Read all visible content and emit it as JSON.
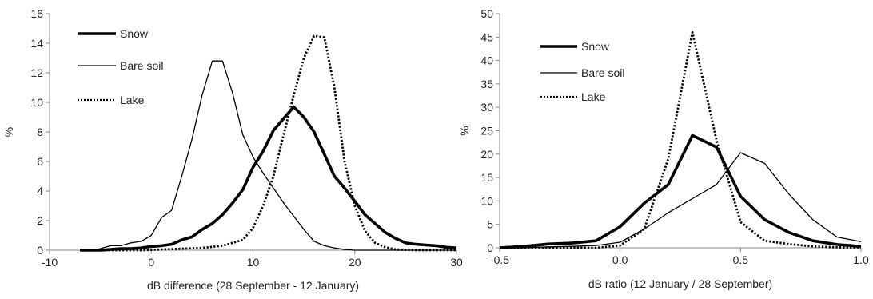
{
  "chart_data": [
    {
      "type": "line",
      "title": "",
      "xlabel": "dB difference (28 September - 12 January)",
      "ylabel": "%",
      "xlim": [
        -10,
        30
      ],
      "ylim": [
        0,
        16
      ],
      "xticks": [
        -10,
        0,
        10,
        20,
        30
      ],
      "yticks": [
        0,
        2,
        4,
        6,
        8,
        10,
        12,
        14,
        16
      ],
      "xtick_labels": [
        "-10",
        "0",
        "10",
        "20",
        "30"
      ],
      "ytick_labels": [
        "0",
        "2",
        "4",
        "6",
        "8",
        "10",
        "12",
        "14",
        "16"
      ],
      "grid": false,
      "legend_position": "top-left",
      "series": [
        {
          "name": "Snow",
          "style": "thick",
          "x": [
            -7,
            -6,
            -5,
            -4,
            -3,
            -2,
            -1,
            0,
            1,
            2,
            3,
            4,
            5,
            6,
            7,
            8,
            9,
            10,
            11,
            12,
            13,
            14,
            15,
            16,
            17,
            18,
            19,
            20,
            21,
            22,
            23,
            24,
            25,
            26,
            27,
            28,
            29,
            30
          ],
          "y": [
            0,
            0,
            0,
            0.05,
            0.1,
            0.1,
            0.15,
            0.25,
            0.3,
            0.4,
            0.7,
            0.9,
            1.4,
            1.8,
            2.4,
            3.2,
            4.1,
            5.6,
            6.7,
            8.1,
            8.9,
            9.7,
            9.0,
            8.0,
            6.5,
            5.0,
            4.2,
            3.3,
            2.4,
            1.8,
            1.2,
            0.8,
            0.5,
            0.4,
            0.35,
            0.3,
            0.2,
            0.15
          ]
        },
        {
          "name": "Bare soil",
          "style": "thin",
          "x": [
            -7,
            -6,
            -5,
            -4,
            -3,
            -2,
            -1,
            0,
            1,
            2,
            3,
            4,
            5,
            6,
            7,
            8,
            9,
            10,
            11,
            12,
            13,
            14,
            15,
            16,
            17,
            18,
            19,
            20,
            22,
            24,
            26,
            28,
            30
          ],
          "y": [
            0,
            0,
            0.1,
            0.3,
            0.3,
            0.5,
            0.6,
            1.0,
            2.2,
            2.7,
            5.0,
            7.5,
            10.5,
            12.8,
            12.8,
            10.6,
            7.8,
            6.3,
            5.2,
            4.2,
            3.2,
            2.3,
            1.4,
            0.6,
            0.3,
            0.15,
            0.05,
            0,
            0,
            0,
            0,
            0,
            0
          ]
        },
        {
          "name": "Lake",
          "style": "dotted",
          "x": [
            -7,
            -5,
            -3,
            -1,
            1,
            3,
            5,
            7,
            8,
            9,
            10,
            11,
            12,
            13,
            14,
            15,
            16,
            17,
            18,
            19,
            20,
            21,
            22,
            23,
            24,
            26,
            28,
            30
          ],
          "y": [
            0,
            0,
            0,
            0,
            0.05,
            0.1,
            0.15,
            0.3,
            0.5,
            0.7,
            1.5,
            3.0,
            5.0,
            7.8,
            10.5,
            13.0,
            14.5,
            14.4,
            11.0,
            6.0,
            3.0,
            1.3,
            0.5,
            0.2,
            0.05,
            0,
            0,
            0
          ]
        }
      ]
    },
    {
      "type": "line",
      "title": "",
      "xlabel": "dB ratio (12 January / 28 September)",
      "ylabel": "%",
      "xlim": [
        -0.5,
        1.0
      ],
      "ylim": [
        0,
        50
      ],
      "xticks": [
        -0.5,
        0.0,
        0.5,
        1.0
      ],
      "yticks": [
        0,
        5,
        10,
        15,
        20,
        25,
        30,
        35,
        40,
        45,
        50
      ],
      "xtick_labels": [
        "-0.5",
        "0.0",
        "0.5",
        "1.0"
      ],
      "ytick_labels": [
        "0",
        "5",
        "10",
        "15",
        "20",
        "25",
        "30",
        "35",
        "40",
        "45",
        "50"
      ],
      "grid": false,
      "legend_position": "top-left",
      "series": [
        {
          "name": "Snow",
          "style": "thick",
          "x": [
            -0.5,
            -0.4,
            -0.3,
            -0.2,
            -0.1,
            0.0,
            0.1,
            0.2,
            0.3,
            0.4,
            0.5,
            0.6,
            0.7,
            0.8,
            0.9,
            1.0
          ],
          "y": [
            0,
            0.3,
            0.8,
            1.0,
            1.5,
            4.5,
            9.5,
            13.5,
            24.0,
            21.5,
            11.0,
            6.0,
            3.3,
            1.5,
            0.7,
            0.3
          ]
        },
        {
          "name": "Bare soil",
          "style": "thin",
          "x": [
            -0.5,
            -0.4,
            -0.3,
            -0.2,
            -0.1,
            0.0,
            0.1,
            0.2,
            0.3,
            0.4,
            0.5,
            0.6,
            0.7,
            0.8,
            0.9,
            1.0
          ],
          "y": [
            0,
            0,
            0.2,
            0.3,
            0.5,
            1.2,
            4.0,
            7.5,
            10.5,
            13.5,
            20.3,
            18.0,
            11.5,
            6.0,
            2.3,
            1.3
          ]
        },
        {
          "name": "Lake",
          "style": "dotted",
          "x": [
            -0.5,
            -0.4,
            -0.3,
            -0.2,
            -0.1,
            0.0,
            0.1,
            0.2,
            0.3,
            0.4,
            0.5,
            0.6,
            0.7,
            0.8,
            0.9,
            1.0
          ],
          "y": [
            0,
            0,
            0,
            0,
            0,
            0.5,
            4.0,
            19.0,
            46.0,
            23.0,
            5.5,
            1.5,
            0.8,
            0.3,
            0.1,
            0
          ]
        }
      ]
    }
  ]
}
